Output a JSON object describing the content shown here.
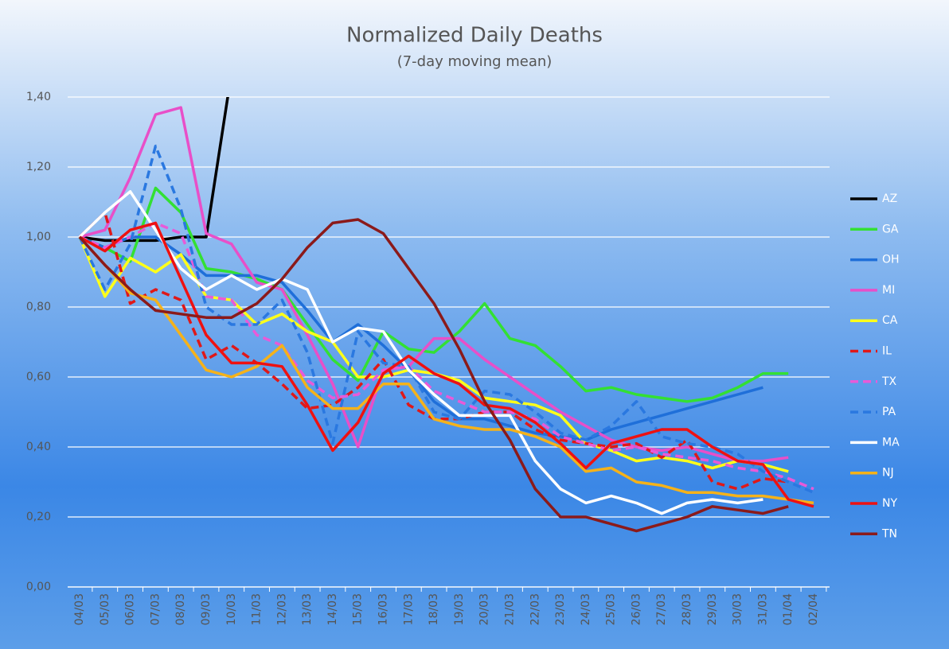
{
  "chart_data": {
    "type": "line",
    "title": "Normalized Daily Deaths",
    "subtitle": "(7-day moving mean)",
    "categories": [
      "04/03",
      "05/03",
      "06/03",
      "07/03",
      "08/03",
      "09/03",
      "10/03",
      "11/03",
      "12/03",
      "13/03",
      "14/03",
      "15/03",
      "16/03",
      "17/03",
      "18/03",
      "19/03",
      "20/03",
      "21/03",
      "22/03",
      "23/03",
      "24/03",
      "25/03",
      "26/03",
      "27/03",
      "28/03",
      "29/03",
      "30/03",
      "31/03",
      "01/04",
      "02/04"
    ],
    "ylim": [
      0,
      1.4
    ],
    "yticks": [
      {
        "value": 0,
        "label": "0,00"
      },
      {
        "value": 0.2,
        "label": "0,20"
      },
      {
        "value": 0.4,
        "label": "0,40"
      },
      {
        "value": 0.6,
        "label": "0,60"
      },
      {
        "value": 0.8,
        "label": "0,80"
      },
      {
        "value": 1,
        "label": "1,00"
      },
      {
        "value": 1.2,
        "label": "1,20"
      },
      {
        "value": 1.4,
        "label": "1,40"
      }
    ],
    "grid": true,
    "legend": "right",
    "series": [
      {
        "name": "AZ",
        "color": "#000000",
        "values": [
          1.0,
          0.99,
          0.99,
          0.99,
          1.0,
          1.0,
          1.47,
          null,
          null,
          null,
          null,
          null,
          null,
          null,
          null,
          null,
          null,
          null,
          null,
          null,
          null,
          null,
          null,
          null,
          null,
          null,
          null,
          null,
          null,
          null
        ]
      },
      {
        "name": "GA",
        "color": "#33e033",
        "values": [
          1.0,
          0.97,
          0.93,
          1.14,
          1.07,
          0.91,
          0.9,
          0.88,
          0.85,
          0.75,
          0.65,
          0.59,
          0.73,
          0.68,
          0.67,
          0.73,
          0.81,
          0.71,
          0.69,
          0.63,
          0.56,
          0.57,
          0.55,
          0.54,
          0.53,
          0.54,
          0.57,
          0.61,
          0.61,
          null
        ]
      },
      {
        "name": "OH",
        "color": "#1f6fd9",
        "values": [
          1.0,
          0.97,
          1.0,
          1.0,
          0.95,
          0.89,
          0.89,
          0.89,
          0.87,
          0.79,
          0.7,
          0.75,
          0.69,
          0.62,
          0.53,
          0.48,
          0.48,
          0.46,
          0.44,
          0.43,
          0.42,
          0.45,
          0.47,
          0.49,
          0.51,
          0.53,
          0.55,
          0.57,
          null,
          null
        ]
      },
      {
        "name": "MI",
        "color": "#e84fc8",
        "values": [
          1.0,
          1.02,
          1.17,
          1.35,
          1.37,
          1.01,
          0.98,
          0.87,
          0.85,
          0.72,
          0.58,
          0.4,
          0.62,
          0.63,
          0.71,
          0.71,
          0.65,
          0.6,
          0.55,
          0.5,
          0.46,
          0.42,
          0.4,
          0.39,
          0.4,
          0.38,
          0.36,
          0.36,
          0.37,
          null
        ]
      },
      {
        "name": "CA",
        "color": "#ffff1a",
        "values": [
          1.0,
          0.83,
          0.94,
          0.9,
          0.95,
          0.83,
          0.82,
          0.75,
          0.78,
          0.73,
          0.7,
          0.6,
          0.6,
          0.62,
          0.61,
          0.59,
          0.54,
          0.53,
          0.52,
          0.49,
          0.41,
          0.39,
          0.36,
          0.37,
          0.36,
          0.34,
          0.36,
          0.35,
          0.33,
          null
        ]
      },
      {
        "name": "IL",
        "color": "#e01818",
        "dashed": true,
        "values": [
          1.0,
          1.07,
          0.81,
          0.85,
          0.82,
          0.65,
          0.69,
          0.64,
          0.58,
          0.51,
          0.52,
          0.57,
          0.65,
          0.52,
          0.48,
          0.48,
          0.5,
          0.5,
          0.45,
          0.42,
          0.41,
          0.4,
          0.41,
          0.37,
          0.42,
          0.3,
          0.28,
          0.31,
          0.3,
          null
        ]
      },
      {
        "name": "TX",
        "color": "#e85ad8",
        "dashed": true,
        "values": [
          1.0,
          0.97,
          1.0,
          1.04,
          1.01,
          0.83,
          0.82,
          0.72,
          0.69,
          0.59,
          0.54,
          0.55,
          0.62,
          0.63,
          0.56,
          0.53,
          0.5,
          0.5,
          0.48,
          0.43,
          0.41,
          0.39,
          0.4,
          0.38,
          0.37,
          0.36,
          0.34,
          0.33,
          0.31,
          0.28
        ]
      },
      {
        "name": "PA",
        "color": "#2a78e0",
        "dashed": true,
        "values": [
          1.0,
          0.85,
          0.98,
          1.26,
          1.08,
          0.8,
          0.75,
          0.75,
          0.82,
          0.67,
          0.41,
          0.73,
          0.64,
          0.63,
          0.5,
          0.48,
          0.56,
          0.55,
          0.5,
          0.44,
          0.42,
          0.46,
          0.53,
          0.43,
          0.41,
          0.4,
          0.38,
          0.33,
          0.3,
          0.27
        ]
      },
      {
        "name": "MA",
        "color": "#ffffff",
        "values": [
          1.0,
          1.07,
          1.13,
          1.02,
          0.91,
          0.85,
          0.89,
          0.85,
          0.88,
          0.85,
          0.7,
          0.74,
          0.73,
          0.62,
          0.55,
          0.49,
          0.49,
          0.49,
          0.36,
          0.28,
          0.24,
          0.26,
          0.24,
          0.21,
          0.24,
          0.25,
          0.24,
          0.25,
          null,
          null
        ]
      },
      {
        "name": "NJ",
        "color": "#f5b21a",
        "values": [
          1.0,
          0.92,
          0.84,
          0.82,
          0.72,
          0.62,
          0.6,
          0.63,
          0.69,
          0.57,
          0.51,
          0.51,
          0.58,
          0.58,
          0.48,
          0.46,
          0.45,
          0.45,
          0.43,
          0.4,
          0.33,
          0.34,
          0.3,
          0.29,
          0.27,
          0.27,
          0.26,
          0.26,
          0.25,
          0.24
        ]
      },
      {
        "name": "NY",
        "color": "#ee1111",
        "values": [
          1.0,
          0.96,
          1.02,
          1.04,
          0.88,
          0.72,
          0.64,
          0.64,
          0.63,
          0.52,
          0.39,
          0.47,
          0.61,
          0.66,
          0.61,
          0.58,
          0.52,
          0.51,
          0.47,
          0.41,
          0.34,
          0.41,
          0.43,
          0.45,
          0.45,
          0.4,
          0.36,
          0.35,
          0.25,
          0.23
        ]
      },
      {
        "name": "TN",
        "color": "#8b1a1a",
        "values": [
          1.0,
          0.92,
          0.85,
          0.79,
          0.78,
          0.77,
          0.77,
          0.81,
          0.88,
          0.97,
          1.04,
          1.05,
          1.01,
          0.91,
          0.81,
          0.68,
          0.53,
          0.42,
          0.28,
          0.2,
          0.2,
          0.18,
          0.16,
          0.18,
          0.2,
          0.23,
          0.22,
          0.21,
          0.23,
          null
        ]
      }
    ]
  }
}
